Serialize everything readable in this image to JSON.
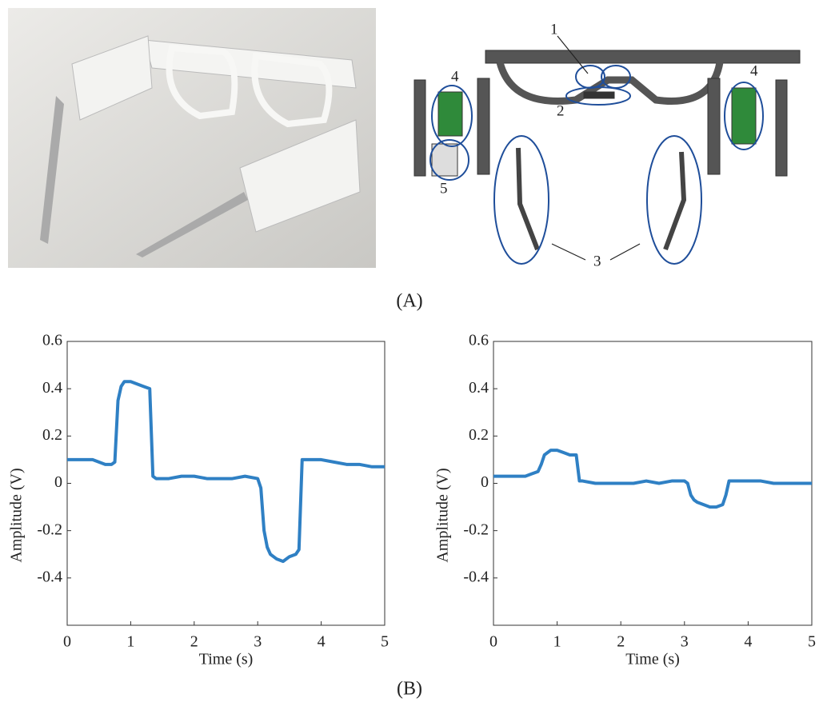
{
  "figure": {
    "panel_a": "(A)",
    "panel_b": "(B)",
    "diagram_labels": [
      "1",
      "2",
      "3",
      "4",
      "4",
      "5"
    ]
  },
  "chart_data": [
    {
      "type": "line",
      "ylabel": "Amplitude (V)",
      "xlabel": "Time (s)",
      "x": [
        0,
        0.2,
        0.4,
        0.5,
        0.6,
        0.7,
        0.75,
        0.8,
        0.85,
        0.9,
        1.0,
        1.1,
        1.2,
        1.3,
        1.35,
        1.4,
        1.6,
        1.8,
        2.0,
        2.2,
        2.4,
        2.6,
        2.8,
        3.0,
        3.05,
        3.1,
        3.15,
        3.2,
        3.3,
        3.4,
        3.5,
        3.6,
        3.65,
        3.7,
        3.8,
        4.0,
        4.2,
        4.4,
        4.6,
        4.8,
        5.0
      ],
      "values": [
        0.1,
        0.1,
        0.1,
        0.09,
        0.08,
        0.08,
        0.09,
        0.35,
        0.41,
        0.43,
        0.43,
        0.42,
        0.41,
        0.4,
        0.03,
        0.02,
        0.02,
        0.03,
        0.03,
        0.02,
        0.02,
        0.02,
        0.03,
        0.02,
        -0.02,
        -0.2,
        -0.27,
        -0.3,
        -0.32,
        -0.33,
        -0.31,
        -0.3,
        -0.28,
        0.1,
        0.1,
        0.1,
        0.09,
        0.08,
        0.08,
        0.07,
        0.07
      ],
      "color": "#2f80c4",
      "xlim": [
        0,
        5
      ],
      "ylim": [
        -0.6,
        0.6
      ],
      "xticks": [
        0,
        1,
        2,
        3,
        4,
        5
      ],
      "yticks": [
        -0.4,
        -0.2,
        0,
        0.2,
        0.4,
        0.6
      ]
    },
    {
      "type": "line",
      "ylabel": "Amplitude (V)",
      "xlabel": "Time (s)",
      "x": [
        0,
        0.2,
        0.4,
        0.5,
        0.6,
        0.7,
        0.75,
        0.8,
        0.85,
        0.9,
        1.0,
        1.1,
        1.2,
        1.3,
        1.35,
        1.4,
        1.6,
        1.8,
        2.0,
        2.2,
        2.4,
        2.6,
        2.8,
        3.0,
        3.05,
        3.1,
        3.15,
        3.2,
        3.3,
        3.4,
        3.5,
        3.6,
        3.65,
        3.7,
        3.8,
        4.0,
        4.2,
        4.4,
        4.6,
        4.8,
        5.0
      ],
      "values": [
        0.03,
        0.03,
        0.03,
        0.03,
        0.04,
        0.05,
        0.08,
        0.12,
        0.13,
        0.14,
        0.14,
        0.13,
        0.12,
        0.12,
        0.01,
        0.01,
        0,
        0,
        0,
        0,
        0.01,
        0,
        0.01,
        0.01,
        0,
        -0.05,
        -0.07,
        -0.08,
        -0.09,
        -0.1,
        -0.1,
        -0.09,
        -0.05,
        0.01,
        0.01,
        0.01,
        0.01,
        0,
        0,
        0,
        0
      ],
      "color": "#2f80c4",
      "xlim": [
        0,
        5
      ],
      "ylim": [
        -0.6,
        0.6
      ],
      "xticks": [
        0,
        1,
        2,
        3,
        4,
        5
      ],
      "yticks": [
        -0.4,
        -0.2,
        0,
        0.2,
        0.4,
        0.6
      ]
    }
  ]
}
